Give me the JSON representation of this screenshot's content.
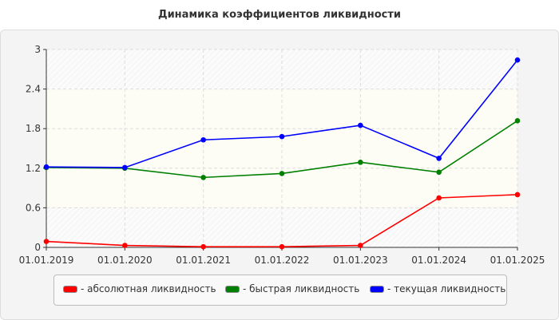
{
  "chart_data": {
    "type": "line",
    "title": "Динамика коэффициентов ликвидности",
    "categories": [
      "01.01.2019",
      "01.01.2020",
      "01.01.2021",
      "01.01.2022",
      "01.01.2023",
      "01.01.2024",
      "01.01.2025"
    ],
    "yticks": [
      "0",
      "0.6",
      "1.2",
      "1.8",
      "2.4",
      "3"
    ],
    "ylim": [
      0,
      3
    ],
    "grid": true,
    "legend_position": "bottom",
    "series": [
      {
        "name": "- абсолютная ликвидность",
        "color": "#ff0000",
        "values": [
          0.09,
          0.03,
          0.01,
          0.01,
          0.03,
          0.75,
          0.8
        ]
      },
      {
        "name": "- быстрая ликвидность",
        "color": "#008000",
        "values": [
          1.21,
          1.2,
          1.06,
          1.12,
          1.29,
          1.14,
          1.92
        ]
      },
      {
        "name": "- текущая ликвидность",
        "color": "#0000ff",
        "values": [
          1.22,
          1.21,
          1.63,
          1.68,
          1.85,
          1.35,
          2.84
        ]
      }
    ]
  }
}
